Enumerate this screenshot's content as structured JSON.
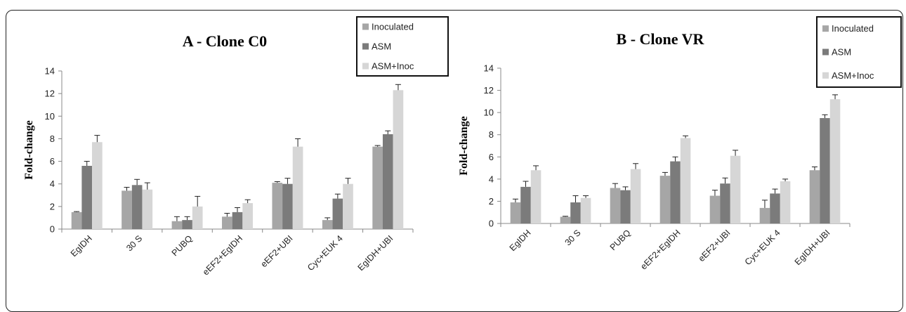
{
  "chart_data": [
    {
      "type": "bar",
      "title": "A - Clone C0",
      "ylabel": "Fold-change",
      "ylim": [
        0,
        14
      ],
      "yticks": [
        0,
        2,
        4,
        6,
        8,
        10,
        12,
        14
      ],
      "categories": [
        "EgIDH",
        "30 S",
        "PUBQ",
        "eEF2+EgIDH",
        "eEF2+UBI",
        "Cyc+EUK 4",
        "EgIDH+UBI"
      ],
      "series": [
        {
          "name": "Inoculated",
          "color": "#a6a6a6",
          "values": [
            1.5,
            3.4,
            0.7,
            1.1,
            4.1,
            0.8,
            7.3
          ],
          "errors": [
            0.05,
            0.3,
            0.4,
            0.3,
            0.1,
            0.2,
            0.1
          ]
        },
        {
          "name": "ASM",
          "color": "#7b7b7b",
          "values": [
            5.6,
            3.9,
            0.8,
            1.5,
            4.0,
            2.7,
            8.4
          ],
          "errors": [
            0.4,
            0.5,
            0.3,
            0.4,
            0.5,
            0.4,
            0.3
          ]
        },
        {
          "name": "ASM+Inoc",
          "color": "#d6d6d6",
          "values": [
            7.7,
            3.5,
            2.0,
            2.3,
            7.3,
            4.0,
            12.3
          ],
          "errors": [
            0.6,
            0.6,
            0.9,
            0.3,
            0.7,
            0.5,
            0.5
          ]
        }
      ],
      "legend_position": "top-right"
    },
    {
      "type": "bar",
      "title": "B - Clone VR",
      "ylabel": "Fold-change",
      "ylim": [
        0,
        14
      ],
      "yticks": [
        0,
        2,
        4,
        6,
        8,
        10,
        12,
        14
      ],
      "categories": [
        "EgIDH",
        "30 S",
        "PUBQ",
        "eEF2+EgIDH",
        "eEF2+UBI",
        "Cyc+EUK 4",
        "EgIDH+UBI"
      ],
      "series": [
        {
          "name": "Inoculated",
          "color": "#a6a6a6",
          "values": [
            1.9,
            0.6,
            3.2,
            4.3,
            2.5,
            1.4,
            4.8
          ],
          "errors": [
            0.3,
            0.05,
            0.4,
            0.3,
            0.5,
            0.7,
            0.3
          ]
        },
        {
          "name": "ASM",
          "color": "#7b7b7b",
          "values": [
            3.3,
            1.9,
            3.0,
            5.6,
            3.6,
            2.7,
            9.5
          ],
          "errors": [
            0.5,
            0.6,
            0.3,
            0.4,
            0.5,
            0.4,
            0.3
          ]
        },
        {
          "name": "ASM+Inoc",
          "color": "#d6d6d6",
          "values": [
            4.8,
            2.3,
            4.9,
            7.7,
            6.1,
            3.8,
            11.2
          ],
          "errors": [
            0.4,
            0.2,
            0.5,
            0.2,
            0.5,
            0.2,
            0.4
          ]
        }
      ],
      "legend_position": "top-right"
    }
  ]
}
